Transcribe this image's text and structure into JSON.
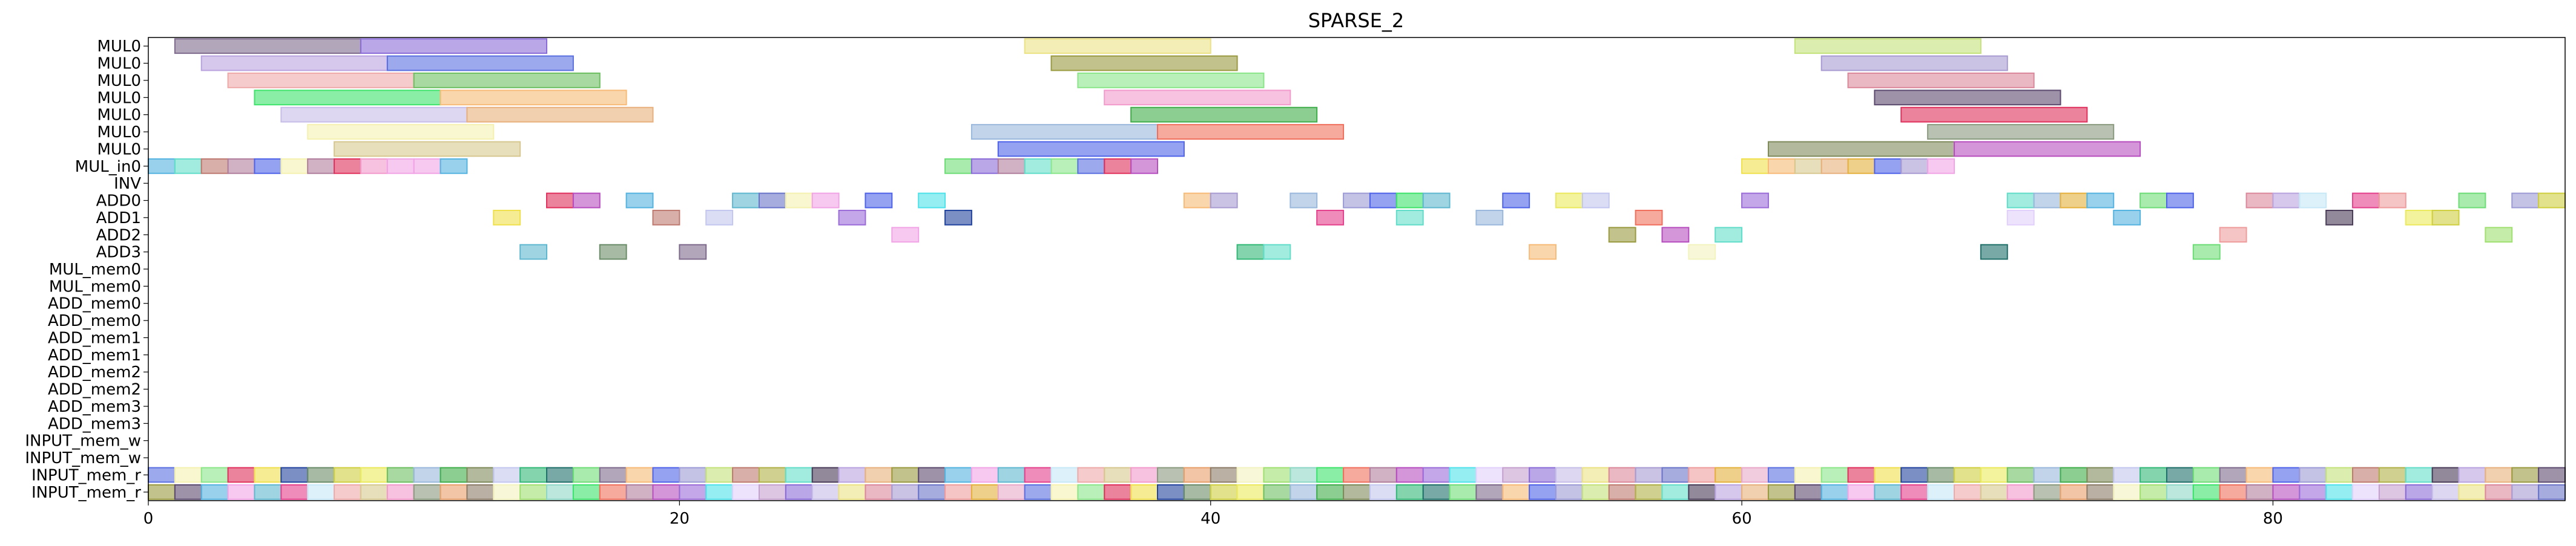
{
  "chart_data": {
    "type": "gantt",
    "title": "SPARSE_2",
    "xlabel": "",
    "ylabel": "",
    "xlim": [
      0,
      91
    ],
    "xticks": [
      0,
      20,
      40,
      60,
      80
    ],
    "grid": false,
    "legend": "none",
    "rows": [
      "MUL0",
      "MUL0",
      "MUL0",
      "MUL0",
      "MUL0",
      "MUL0",
      "MUL0",
      "MUL_in0",
      "INV",
      "ADD0",
      "ADD1",
      "ADD2",
      "ADD3",
      "MUL_mem0",
      "MUL_mem0",
      "ADD_mem0",
      "ADD_mem0",
      "ADD_mem1",
      "ADD_mem1",
      "ADD_mem2",
      "ADD_mem2",
      "ADD_mem3",
      "ADD_mem3",
      "INPUT_mem_w",
      "INPUT_mem_w",
      "INPUT_mem_r",
      "INPUT_mem_r"
    ],
    "palette": [
      "#7e6a8c",
      "#8a6cd8",
      "#b9a3df",
      "#5a6fe0",
      "#eea9a9",
      "#6dbf61",
      "#3ee36b",
      "#f7ba77",
      "#c6bde8",
      "#e7b07c",
      "#f5f1b0",
      "#d7c88f",
      "#9ab8dc",
      "#f06f5c",
      "#4e63e8",
      "#ebe284",
      "#9a9a40",
      "#8be68a",
      "#f29acb",
      "#3fae4a",
      "#b07e9c",
      "#9c9bd6",
      "#dc889b",
      "#5b4a6e",
      "#e0305c",
      "#8a9a7e",
      "#7e8a5a",
      "#b74ec0",
      "#c4e27a",
      "#a89bd2",
      "#55b3e0",
      "#f0e04c",
      "#e79f6a",
      "#c3c7ef",
      "#9b6cd8",
      "#bf7a70",
      "#6a74c8",
      "#f1a4e6",
      "#23449e",
      "#8c7c68",
      "#32b877",
      "#4fe2ea",
      "#b0b048",
      "#ee9c9c",
      "#5fb8d0",
      "#6a8c68",
      "#f3f3c0",
      "#20706a",
      "#e2d0fc",
      "#62ddc9",
      "#e5b13d",
      "#e4408c",
      "#cfcf40",
      "#a0e070",
      "#6edd77",
      "#c5a0ce",
      "#4a3c58",
      "#e8a8c8",
      "#c7e8f7",
      "#ebe95c",
      "#8dd7c6"
    ],
    "bars": [
      {
        "row": 0,
        "start": 1,
        "end": 8,
        "c": 0
      },
      {
        "row": 0,
        "start": 8,
        "end": 15,
        "c": 1
      },
      {
        "row": 0,
        "start": 33,
        "end": 40,
        "c": 15
      },
      {
        "row": 0,
        "start": 62,
        "end": 69,
        "c": 28
      },
      {
        "row": 1,
        "start": 2,
        "end": 9,
        "c": 2
      },
      {
        "row": 1,
        "start": 9,
        "end": 16,
        "c": 3
      },
      {
        "row": 1,
        "start": 34,
        "end": 41,
        "c": 16
      },
      {
        "row": 1,
        "start": 63,
        "end": 70,
        "c": 29
      },
      {
        "row": 2,
        "start": 3,
        "end": 10,
        "c": 4
      },
      {
        "row": 2,
        "start": 10,
        "end": 17,
        "c": 5
      },
      {
        "row": 2,
        "start": 35,
        "end": 42,
        "c": 17
      },
      {
        "row": 2,
        "start": 64,
        "end": 71,
        "c": 22
      },
      {
        "row": 3,
        "start": 4,
        "end": 11,
        "c": 6
      },
      {
        "row": 3,
        "start": 11,
        "end": 18,
        "c": 7
      },
      {
        "row": 3,
        "start": 36,
        "end": 43,
        "c": 18
      },
      {
        "row": 3,
        "start": 65,
        "end": 72,
        "c": 23
      },
      {
        "row": 4,
        "start": 5,
        "end": 12,
        "c": 8
      },
      {
        "row": 4,
        "start": 12,
        "end": 19,
        "c": 9
      },
      {
        "row": 4,
        "start": 37,
        "end": 44,
        "c": 19
      },
      {
        "row": 4,
        "start": 66,
        "end": 73,
        "c": 24
      },
      {
        "row": 5,
        "start": 6,
        "end": 13,
        "c": 10
      },
      {
        "row": 5,
        "start": 31,
        "end": 38,
        "c": 12
      },
      {
        "row": 5,
        "start": 38,
        "end": 45,
        "c": 13
      },
      {
        "row": 5,
        "start": 67,
        "end": 74,
        "c": 25
      },
      {
        "row": 6,
        "start": 7,
        "end": 14,
        "c": 11
      },
      {
        "row": 6,
        "start": 32,
        "end": 39,
        "c": 14
      },
      {
        "row": 6,
        "start": 61,
        "end": 68,
        "c": 26
      },
      {
        "row": 6,
        "start": 68,
        "end": 75,
        "c": 27
      },
      {
        "row": 7,
        "start": 0,
        "end": 1,
        "c": 30
      },
      {
        "row": 7,
        "start": 1,
        "end": 2,
        "c": 49
      },
      {
        "row": 7,
        "start": 2,
        "end": 3,
        "c": 35
      },
      {
        "row": 7,
        "start": 3,
        "end": 4,
        "c": 20
      },
      {
        "row": 7,
        "start": 4,
        "end": 5,
        "c": 14
      },
      {
        "row": 7,
        "start": 5,
        "end": 6,
        "c": 10
      },
      {
        "row": 7,
        "start": 6,
        "end": 7,
        "c": 20
      },
      {
        "row": 7,
        "start": 7,
        "end": 8,
        "c": 24
      },
      {
        "row": 7,
        "start": 8,
        "end": 9,
        "c": 18
      },
      {
        "row": 7,
        "start": 9,
        "end": 10,
        "c": 37
      },
      {
        "row": 7,
        "start": 10,
        "end": 11,
        "c": 37
      },
      {
        "row": 7,
        "start": 11,
        "end": 12,
        "c": 30
      },
      {
        "row": 7,
        "start": 30,
        "end": 31,
        "c": 54
      },
      {
        "row": 7,
        "start": 31,
        "end": 32,
        "c": 1
      },
      {
        "row": 7,
        "start": 32,
        "end": 33,
        "c": 20
      },
      {
        "row": 7,
        "start": 33,
        "end": 34,
        "c": 49
      },
      {
        "row": 7,
        "start": 34,
        "end": 35,
        "c": 17
      },
      {
        "row": 7,
        "start": 35,
        "end": 36,
        "c": 3
      },
      {
        "row": 7,
        "start": 36,
        "end": 37,
        "c": 24
      },
      {
        "row": 7,
        "start": 37,
        "end": 38,
        "c": 27
      },
      {
        "row": 7,
        "start": 60,
        "end": 61,
        "c": 31
      },
      {
        "row": 7,
        "start": 61,
        "end": 62,
        "c": 7
      },
      {
        "row": 7,
        "start": 62,
        "end": 63,
        "c": 11
      },
      {
        "row": 7,
        "start": 63,
        "end": 64,
        "c": 9
      },
      {
        "row": 7,
        "start": 64,
        "end": 65,
        "c": 50
      },
      {
        "row": 7,
        "start": 65,
        "end": 66,
        "c": 14
      },
      {
        "row": 7,
        "start": 66,
        "end": 67,
        "c": 29
      },
      {
        "row": 7,
        "start": 67,
        "end": 68,
        "c": 37
      },
      {
        "row": 9,
        "start": 15,
        "end": 16,
        "c": 24
      },
      {
        "row": 9,
        "start": 16,
        "end": 17,
        "c": 27
      },
      {
        "row": 9,
        "start": 18,
        "end": 19,
        "c": 30
      },
      {
        "row": 9,
        "start": 22,
        "end": 23,
        "c": 44
      },
      {
        "row": 9,
        "start": 23,
        "end": 24,
        "c": 36
      },
      {
        "row": 9,
        "start": 24,
        "end": 25,
        "c": 10
      },
      {
        "row": 9,
        "start": 25,
        "end": 26,
        "c": 37
      },
      {
        "row": 9,
        "start": 27,
        "end": 28,
        "c": 14
      },
      {
        "row": 9,
        "start": 29,
        "end": 30,
        "c": 41
      },
      {
        "row": 9,
        "start": 39,
        "end": 40,
        "c": 7
      },
      {
        "row": 9,
        "start": 40,
        "end": 41,
        "c": 29
      },
      {
        "row": 9,
        "start": 43,
        "end": 44,
        "c": 12
      },
      {
        "row": 9,
        "start": 45,
        "end": 46,
        "c": 21
      },
      {
        "row": 9,
        "start": 46,
        "end": 47,
        "c": 14
      },
      {
        "row": 9,
        "start": 47,
        "end": 48,
        "c": 6
      },
      {
        "row": 9,
        "start": 48,
        "end": 49,
        "c": 44
      },
      {
        "row": 9,
        "start": 51,
        "end": 52,
        "c": 14
      },
      {
        "row": 9,
        "start": 53,
        "end": 54,
        "c": 59
      },
      {
        "row": 9,
        "start": 54,
        "end": 55,
        "c": 33
      },
      {
        "row": 9,
        "start": 60,
        "end": 61,
        "c": 34
      },
      {
        "row": 9,
        "start": 70,
        "end": 71,
        "c": 49
      },
      {
        "row": 9,
        "start": 71,
        "end": 72,
        "c": 12
      },
      {
        "row": 9,
        "start": 72,
        "end": 73,
        "c": 50
      },
      {
        "row": 9,
        "start": 73,
        "end": 74,
        "c": 30
      },
      {
        "row": 9,
        "start": 75,
        "end": 76,
        "c": 54
      },
      {
        "row": 9,
        "start": 76,
        "end": 77,
        "c": 14
      },
      {
        "row": 9,
        "start": 79,
        "end": 80,
        "c": 22
      },
      {
        "row": 9,
        "start": 80,
        "end": 81,
        "c": 2
      },
      {
        "row": 9,
        "start": 81,
        "end": 82,
        "c": 58
      },
      {
        "row": 9,
        "start": 83,
        "end": 84,
        "c": 51
      },
      {
        "row": 9,
        "start": 84,
        "end": 85,
        "c": 43
      },
      {
        "row": 9,
        "start": 87,
        "end": 88,
        "c": 54
      },
      {
        "row": 9,
        "start": 89,
        "end": 90,
        "c": 21
      },
      {
        "row": 9,
        "start": 90,
        "end": 91,
        "c": 52
      },
      {
        "row": 10,
        "start": 13,
        "end": 14,
        "c": 31
      },
      {
        "row": 10,
        "start": 19,
        "end": 20,
        "c": 35
      },
      {
        "row": 10,
        "start": 21,
        "end": 22,
        "c": 33
      },
      {
        "row": 10,
        "start": 26,
        "end": 27,
        "c": 34
      },
      {
        "row": 10,
        "start": 30,
        "end": 31,
        "c": 38
      },
      {
        "row": 10,
        "start": 44,
        "end": 45,
        "c": 51
      },
      {
        "row": 10,
        "start": 47,
        "end": 48,
        "c": 49
      },
      {
        "row": 10,
        "start": 50,
        "end": 51,
        "c": 12
      },
      {
        "row": 10,
        "start": 56,
        "end": 57,
        "c": 13
      },
      {
        "row": 10,
        "start": 70,
        "end": 71,
        "c": 48
      },
      {
        "row": 10,
        "start": 74,
        "end": 75,
        "c": 30
      },
      {
        "row": 10,
        "start": 82,
        "end": 83,
        "c": 56
      },
      {
        "row": 10,
        "start": 85,
        "end": 86,
        "c": 59
      },
      {
        "row": 10,
        "start": 86,
        "end": 87,
        "c": 52
      },
      {
        "row": 11,
        "start": 28,
        "end": 29,
        "c": 37
      },
      {
        "row": 11,
        "start": 55,
        "end": 56,
        "c": 16
      },
      {
        "row": 11,
        "start": 57,
        "end": 58,
        "c": 27
      },
      {
        "row": 11,
        "start": 59,
        "end": 60,
        "c": 49
      },
      {
        "row": 11,
        "start": 78,
        "end": 79,
        "c": 43
      },
      {
        "row": 11,
        "start": 88,
        "end": 89,
        "c": 53
      },
      {
        "row": 12,
        "start": 14,
        "end": 15,
        "c": 44
      },
      {
        "row": 12,
        "start": 17,
        "end": 18,
        "c": 45
      },
      {
        "row": 12,
        "start": 20,
        "end": 21,
        "c": 0
      },
      {
        "row": 12,
        "start": 41,
        "end": 42,
        "c": 40
      },
      {
        "row": 12,
        "start": 42,
        "end": 43,
        "c": 49
      },
      {
        "row": 12,
        "start": 52,
        "end": 53,
        "c": 7
      },
      {
        "row": 12,
        "start": 58,
        "end": 59,
        "c": 46
      },
      {
        "row": 12,
        "start": 69,
        "end": 70,
        "c": 47
      },
      {
        "row": 12,
        "start": 77,
        "end": 78,
        "c": 54
      }
    ],
    "input_rows": [
      25,
      26
    ]
  }
}
